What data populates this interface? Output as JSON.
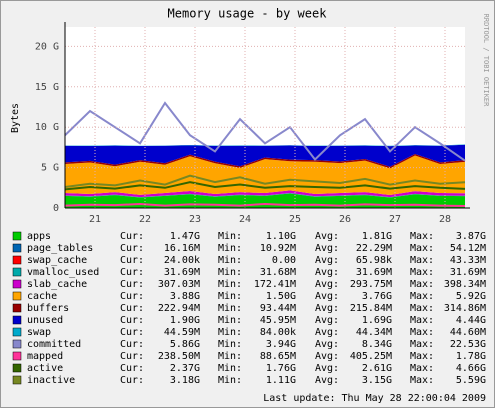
{
  "chart_data": {
    "type": "area",
    "title": "Memory usage - by week",
    "y_label": "Bytes",
    "watermark": "RRDTOOL / TOBI OETIKER",
    "footer": "Last update:  Thu May 28 22:00:04 2009",
    "x": [
      20.4,
      20.9,
      21.4,
      21.9,
      22.4,
      22.9,
      23.4,
      23.9,
      24.4,
      24.9,
      25.4,
      25.9,
      26.4,
      26.9,
      27.4,
      27.9,
      28.4
    ],
    "xlim": [
      20.4,
      28.4
    ],
    "xticks": [
      21,
      22,
      23,
      24,
      25,
      26,
      27,
      28
    ],
    "ylim": [
      0,
      22.4
    ],
    "yticks": [
      {
        "value": 0,
        "label": "0"
      },
      {
        "value": 5,
        "label": "5 G"
      },
      {
        "value": 10,
        "label": "10 G"
      },
      {
        "value": 15,
        "label": "15 G"
      },
      {
        "value": 20,
        "label": "20 G"
      }
    ],
    "grid": true,
    "series": [
      {
        "name": "apps",
        "color": "#00cc00",
        "style": "area",
        "values": [
          1.5,
          1.4,
          1.6,
          1.3,
          1.5,
          1.7,
          1.4,
          1.6,
          1.5,
          1.8,
          1.4,
          1.5,
          1.6,
          1.3,
          1.7,
          1.5,
          1.47
        ]
      },
      {
        "name": "page_tables",
        "color": "#0066b3",
        "style": "area",
        "values": [
          0.02,
          0.02,
          0.02,
          0.02,
          0.02,
          0.02,
          0.02,
          0.02,
          0.02,
          0.02,
          0.02,
          0.02,
          0.02,
          0.02,
          0.02,
          0.02,
          0.016
        ]
      },
      {
        "name": "swap_cache",
        "color": "#ff0000",
        "style": "area",
        "values": [
          0,
          0,
          0,
          0,
          0,
          0,
          0,
          0,
          0,
          0,
          0,
          0,
          0,
          0,
          0,
          0,
          0
        ]
      },
      {
        "name": "vmalloc_used",
        "color": "#00aaaa",
        "style": "area",
        "values": [
          0.03,
          0.03,
          0.03,
          0.03,
          0.03,
          0.03,
          0.03,
          0.03,
          0.03,
          0.03,
          0.03,
          0.03,
          0.03,
          0.03,
          0.03,
          0.03,
          0.03
        ]
      },
      {
        "name": "slab_cache",
        "color": "#cc00cc",
        "style": "area",
        "values": [
          0.3,
          0.28,
          0.32,
          0.27,
          0.3,
          0.35,
          0.29,
          0.31,
          0.3,
          0.33,
          0.28,
          0.3,
          0.32,
          0.26,
          0.34,
          0.3,
          0.31
        ]
      },
      {
        "name": "cache",
        "color": "#ffa500",
        "style": "area",
        "values": [
          3.6,
          3.9,
          3.2,
          4.1,
          3.5,
          4.3,
          3.8,
          3.0,
          4.2,
          3.6,
          4.0,
          3.7,
          3.9,
          3.3,
          4.4,
          3.6,
          3.88
        ]
      },
      {
        "name": "buffers",
        "color": "#990000",
        "style": "area",
        "values": [
          0.2,
          0.2,
          0.2,
          0.2,
          0.2,
          0.2,
          0.2,
          0.2,
          0.2,
          0.2,
          0.2,
          0.2,
          0.2,
          0.2,
          0.2,
          0.2,
          0.22
        ]
      },
      {
        "name": "unused",
        "color": "#0000cc",
        "style": "area",
        "values": [
          2.05,
          1.85,
          2.35,
          1.75,
          2.15,
          1.15,
          1.95,
          2.55,
          1.45,
          1.75,
          1.75,
          1.95,
          1.65,
          2.55,
          1.05,
          2.05,
          1.9
        ]
      },
      {
        "name": "swap",
        "color": "#00aacc",
        "style": "area",
        "values": [
          0.04,
          0.04,
          0.04,
          0.04,
          0.04,
          0.04,
          0.04,
          0.04,
          0.04,
          0.04,
          0.04,
          0.04,
          0.04,
          0.04,
          0.04,
          0.04,
          0.045
        ]
      },
      {
        "name": "committed",
        "color": "#8888cc",
        "style": "line",
        "values": [
          9,
          12,
          10,
          8,
          13,
          9,
          7,
          11,
          8,
          10,
          6,
          9,
          11,
          7,
          10,
          8,
          5.86
        ]
      },
      {
        "name": "mapped",
        "color": "#ff3399",
        "style": "line",
        "values": [
          0.3,
          0.4,
          0.35,
          0.5,
          0.3,
          0.45,
          0.4,
          0.3,
          0.5,
          0.35,
          0.4,
          0.3,
          0.45,
          0.35,
          0.4,
          0.3,
          0.24
        ]
      },
      {
        "name": "active",
        "color": "#336600",
        "style": "line",
        "values": [
          2.3,
          2.6,
          2.4,
          2.8,
          2.5,
          3.2,
          2.6,
          2.9,
          2.5,
          2.7,
          2.6,
          2.5,
          2.8,
          2.4,
          2.7,
          2.5,
          2.37
        ]
      },
      {
        "name": "inactive",
        "color": "#778822",
        "style": "line",
        "values": [
          2.6,
          3.0,
          2.8,
          3.4,
          2.9,
          4.0,
          3.2,
          3.8,
          3.0,
          3.5,
          3.3,
          3.1,
          3.6,
          2.9,
          3.4,
          3.0,
          3.18
        ]
      }
    ]
  },
  "table": {
    "labels": [
      "Cur:",
      "Min:",
      "Avg:",
      "Max:"
    ],
    "stats": [
      [
        "1.47G",
        "1.10G",
        "1.81G",
        "3.87G"
      ],
      [
        "16.16M",
        "10.92M",
        "22.29M",
        "54.12M"
      ],
      [
        "24.00k",
        "0.00",
        "65.98k",
        "43.33M"
      ],
      [
        "31.69M",
        "31.68M",
        "31.69M",
        "31.69M"
      ],
      [
        "307.03M",
        "172.41M",
        "293.75M",
        "398.34M"
      ],
      [
        "3.88G",
        "1.50G",
        "3.76G",
        "5.92G"
      ],
      [
        "222.94M",
        "93.44M",
        "215.84M",
        "314.86M"
      ],
      [
        "1.90G",
        "45.95M",
        "1.69G",
        "4.44G"
      ],
      [
        "44.59M",
        "84.00k",
        "44.34M",
        "44.60M"
      ],
      [
        "5.86G",
        "3.94G",
        "8.34G",
        "22.53G"
      ],
      [
        "238.50M",
        "88.65M",
        "405.25M",
        "1.78G"
      ],
      [
        "2.37G",
        "1.76G",
        "2.61G",
        "4.66G"
      ],
      [
        "3.18G",
        "1.11G",
        "3.15G",
        "5.59G"
      ]
    ]
  }
}
